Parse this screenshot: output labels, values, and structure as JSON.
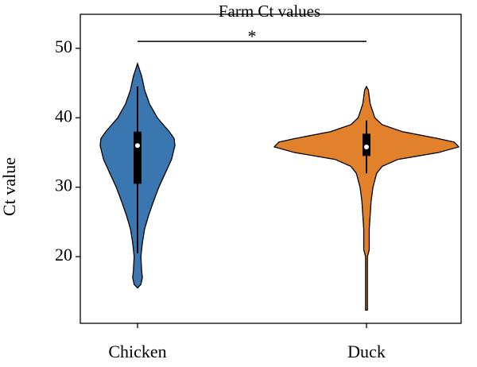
{
  "chart_data": {
    "type": "violin",
    "title": "Farm Ct values",
    "y_label": "Ct value",
    "categories": [
      "Chicken",
      "Duck"
    ],
    "ylim": [
      10.4,
      54.9
    ],
    "yticks": [
      20,
      30,
      40,
      50
    ],
    "series": [
      {
        "name": "Chicken",
        "color": "#3a76af",
        "kde_y": [
          15.5,
          16,
          17,
          18,
          20,
          22,
          24,
          26,
          28,
          30,
          32,
          34,
          36,
          37,
          38,
          40,
          42,
          44,
          46,
          47.8
        ],
        "density": [
          0,
          0.09,
          0.13,
          0.11,
          0.09,
          0.13,
          0.19,
          0.3,
          0.43,
          0.57,
          0.74,
          0.91,
          1,
          0.98,
          0.85,
          0.53,
          0.32,
          0.19,
          0.11,
          0
        ],
        "whisker_low": 20.5,
        "q1": 30.5,
        "median": 36,
        "q3": 38,
        "whisker_high": 44.5
      },
      {
        "name": "Duck",
        "color": "#e1812c",
        "kde_y": [
          12.3,
          20,
          21,
          24,
          28,
          30,
          32,
          33,
          34,
          35,
          35.8,
          36.5,
          37,
          38,
          39,
          40,
          42,
          44,
          44.5
        ],
        "density": [
          0.01,
          0.01,
          0.03,
          0.03,
          0.05,
          0.07,
          0.11,
          0.17,
          0.34,
          0.78,
          1,
          0.95,
          0.78,
          0.39,
          0.17,
          0.09,
          0.04,
          0.02,
          0
        ],
        "whisker_low": 32,
        "q1": 34.5,
        "median": 35.8,
        "q3": 37.7,
        "whisker_high": 39.6
      }
    ],
    "significance": {
      "label": "*",
      "y": 51
    }
  }
}
